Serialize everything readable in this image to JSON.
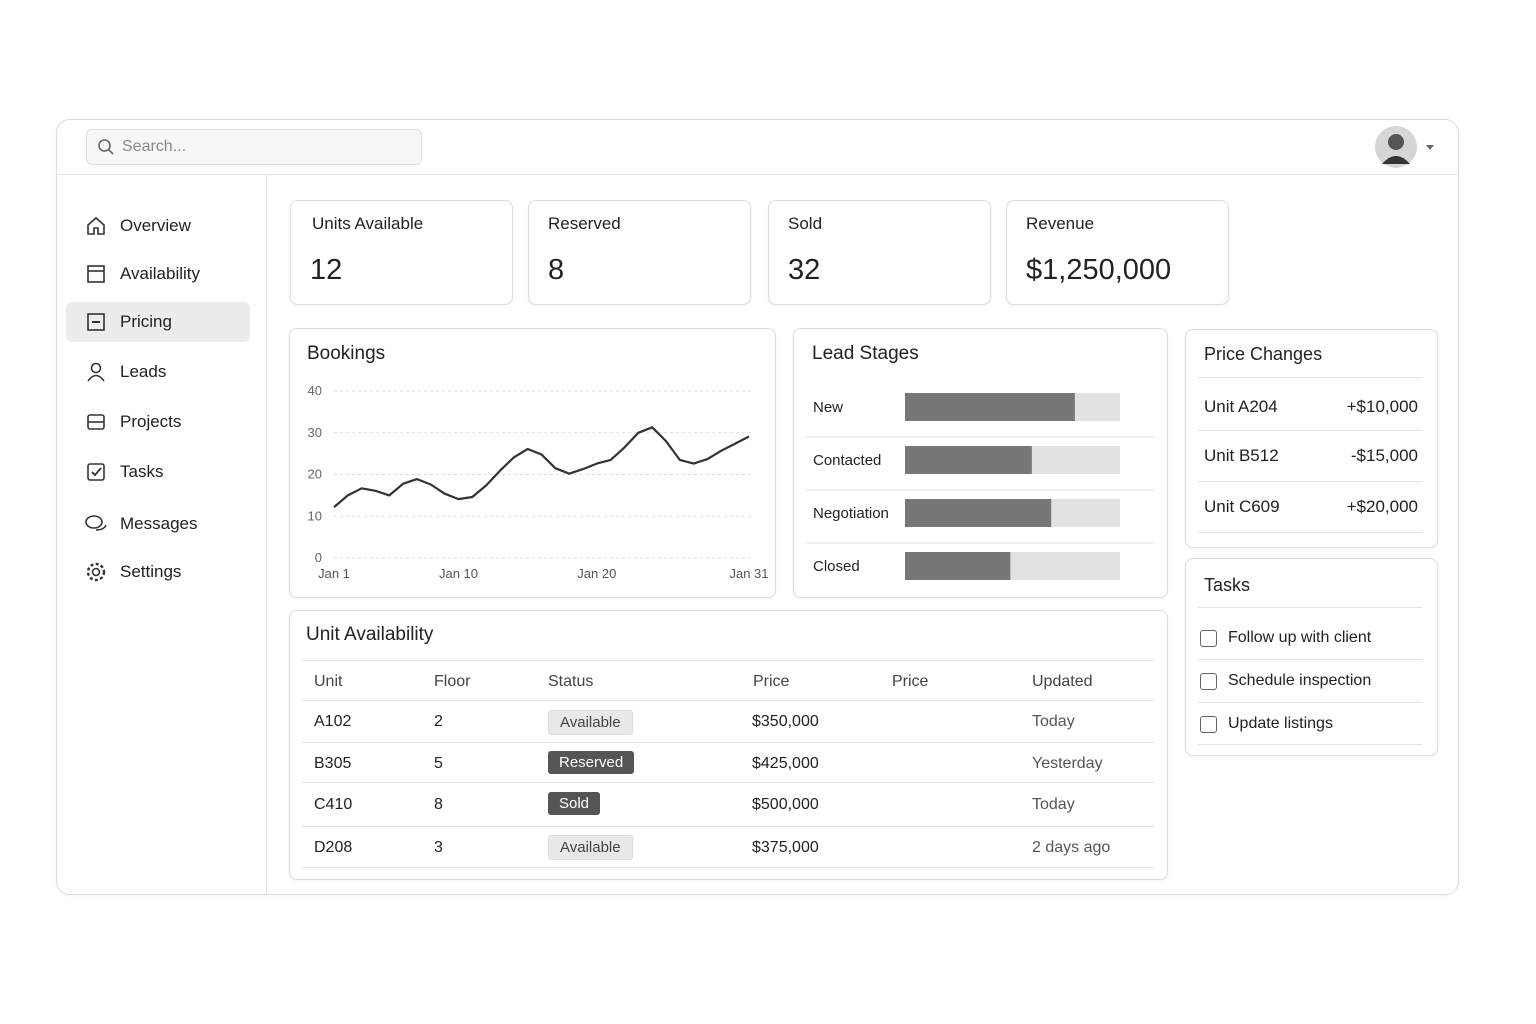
{
  "header": {
    "search_placeholder": "Search..."
  },
  "nav": [
    "Overview",
    "Availability",
    "Pricing",
    "Leads",
    "Projects",
    "Tasks",
    "Messages",
    "Settings"
  ],
  "kpis": [
    {
      "label": "Units Available",
      "value": 12
    },
    {
      "label": "Reserved",
      "value": 8
    },
    {
      "label": "Sold",
      "value": 32
    },
    {
      "label": "Revenue",
      "value": "$1,250,000"
    }
  ],
  "chart_data": [
    {
      "type": "line",
      "title": "Bookings",
      "categories": [
        "Jan 1",
        null,
        null,
        null,
        null,
        null,
        null,
        null,
        null,
        "Jan 10",
        null,
        null,
        null,
        null,
        null,
        null,
        null,
        null,
        null,
        "Jan 20",
        null,
        null,
        null,
        null,
        null,
        null,
        null,
        null,
        null,
        null,
        "Jan 31"
      ],
      "values": [
        12.2,
        15,
        16.7,
        16.1,
        15,
        17.8,
        18.9,
        17.6,
        15.4,
        14.1,
        14.6,
        17.4,
        20.9,
        24.1,
        26.1,
        24.8,
        21.5,
        20.2,
        21.3,
        22.6,
        23.5,
        26.5,
        30,
        31.3,
        28,
        23.5,
        22.6,
        23.7,
        25.7,
        27.4,
        29.1
      ],
      "color": "#333333",
      "ylim": [
        0,
        40
      ],
      "yticks": [
        0,
        10,
        20,
        30,
        40
      ],
      "grid": true
    },
    {
      "type": "bar",
      "title": "Lead Stages",
      "orientation": "horizontal",
      "categories": [
        "New",
        "Contacted",
        "Negotiation",
        "Closed"
      ],
      "values": [
        79,
        59,
        68,
        49
      ],
      "xlim": [
        0,
        100
      ],
      "color": "#777777"
    }
  ],
  "price_changes": {
    "title": "Price Changes",
    "rows": [
      {
        "unit": "Unit A204",
        "change": "+$10,000"
      },
      {
        "unit": "Unit B512",
        "change": "-$15,000"
      },
      {
        "unit": "Unit C609",
        "change": "+$20,000"
      }
    ]
  },
  "tasks": {
    "title": "Tasks",
    "items": [
      "Follow up with client",
      "Schedule inspection",
      "Update listings"
    ]
  },
  "table": {
    "title": "Unit Availability",
    "columns": [
      "Unit",
      "Floor",
      "Status",
      "Price",
      "Price",
      "Updated"
    ],
    "rows": [
      {
        "unit": "A102",
        "floor": 2,
        "status": "Available",
        "price": "$350,000",
        "updated": "Today"
      },
      {
        "unit": "B305",
        "floor": 5,
        "status": "Reserved",
        "price": "$425,000",
        "updated": "Yesterday"
      },
      {
        "unit": "C410",
        "floor": 8,
        "status": "Sold",
        "price": "$500,000",
        "updated": "Today"
      },
      {
        "unit": "D208",
        "floor": 3,
        "status": "Available",
        "price": "$375,000",
        "updated": "2 days ago"
      }
    ]
  }
}
